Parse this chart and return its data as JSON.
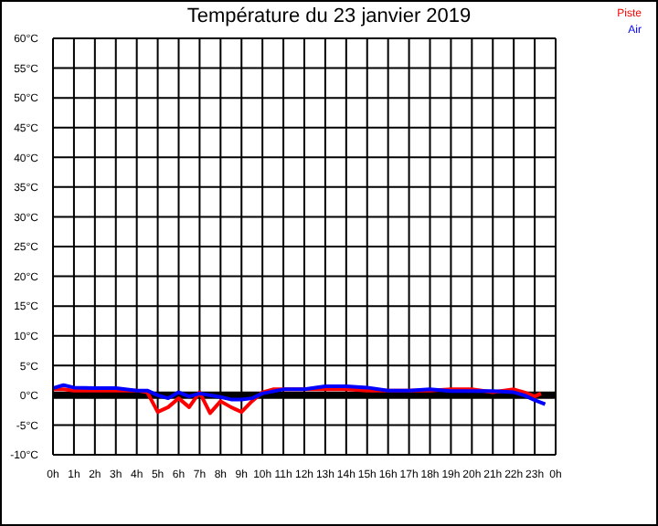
{
  "chart_data": {
    "type": "line",
    "title": "Température du 23 janvier 2019",
    "series": [
      {
        "name": "Piste",
        "color": "#ff0000",
        "x": [
          "2019-01-23T00:00",
          "2019-01-23T00:30",
          "2019-01-23T01:00",
          "2019-01-23T02:00",
          "2019-01-23T03:00",
          "2019-01-23T04:00",
          "2019-01-23T04:30",
          "2019-01-23T05:00",
          "2019-01-23T05:30",
          "2019-01-23T06:00",
          "2019-01-23T06:30",
          "2019-01-23T07:00",
          "2019-01-23T07:30",
          "2019-01-23T08:00",
          "2019-01-23T08:30",
          "2019-01-23T09:00",
          "2019-01-23T09:30",
          "2019-01-23T10:00",
          "2019-01-23T10:30",
          "2019-01-23T11:00",
          "2019-01-23T12:00",
          "2019-01-23T13:00",
          "2019-01-23T14:00",
          "2019-01-23T15:00",
          "2019-01-23T16:00",
          "2019-01-23T17:00",
          "2019-01-23T18:00",
          "2019-01-23T19:00",
          "2019-01-23T20:00",
          "2019-01-23T21:00",
          "2019-01-23T22:00",
          "2019-01-23T22:30",
          "2019-01-23T23:00",
          "2019-01-23T23:18"
        ],
        "values": [
          1,
          1,
          0.8,
          0.8,
          0.8,
          0.8,
          0.5,
          -2.8,
          -2,
          -0.5,
          -2,
          0.5,
          -3,
          -1,
          -2,
          -2.8,
          -1,
          0.5,
          1,
          1,
          1,
          1,
          1,
          0.8,
          0.8,
          0.8,
          0.8,
          1,
          1,
          0.5,
          1,
          0.5,
          -0.2,
          0.3
        ]
      },
      {
        "name": "Air",
        "color": "#0000ff",
        "x": [
          "2019-01-23T00:00",
          "2019-01-23T00:30",
          "2019-01-23T01:00",
          "2019-01-23T02:00",
          "2019-01-23T03:00",
          "2019-01-23T04:00",
          "2019-01-23T04:30",
          "2019-01-23T05:00",
          "2019-01-23T05:30",
          "2019-01-23T06:00",
          "2019-01-23T06:30",
          "2019-01-23T07:00",
          "2019-01-23T08:00",
          "2019-01-23T08:30",
          "2019-01-23T09:00",
          "2019-01-23T09:30",
          "2019-01-23T10:00",
          "2019-01-23T11:00",
          "2019-01-23T12:00",
          "2019-01-23T13:00",
          "2019-01-23T14:00",
          "2019-01-23T15:00",
          "2019-01-23T16:00",
          "2019-01-23T17:00",
          "2019-01-23T18:00",
          "2019-01-23T19:00",
          "2019-01-23T20:00",
          "2019-01-23T21:00",
          "2019-01-23T22:00",
          "2019-01-23T22:30",
          "2019-01-23T23:00",
          "2019-01-23T23:30"
        ],
        "values": [
          1.2,
          1.7,
          1.3,
          1.2,
          1.2,
          0.8,
          0.8,
          0,
          -0.5,
          0.5,
          -0.2,
          0.3,
          -0.3,
          -0.7,
          -0.7,
          -0.5,
          0.3,
          1,
          1,
          1.5,
          1.5,
          1.3,
          0.8,
          0.8,
          1,
          0.7,
          0.7,
          0.7,
          0.5,
          0,
          -0.8,
          -1.5
        ]
      }
    ],
    "xlim": [
      "2019-01-23T00:00",
      "2019-01-24T00:00"
    ],
    "xticks": [
      {
        "value": "2019-01-23T00:00",
        "label": "0h"
      },
      {
        "value": "2019-01-23T01:00",
        "label": "1h"
      },
      {
        "value": "2019-01-23T02:00",
        "label": "2h"
      },
      {
        "value": "2019-01-23T03:00",
        "label": "3h"
      },
      {
        "value": "2019-01-23T04:00",
        "label": "4h"
      },
      {
        "value": "2019-01-23T05:00",
        "label": "5h"
      },
      {
        "value": "2019-01-23T06:00",
        "label": "6h"
      },
      {
        "value": "2019-01-23T07:00",
        "label": "7h"
      },
      {
        "value": "2019-01-23T08:00",
        "label": "8h"
      },
      {
        "value": "2019-01-23T09:00",
        "label": "9h"
      },
      {
        "value": "2019-01-23T10:00",
        "label": "10h"
      },
      {
        "value": "2019-01-23T11:00",
        "label": "11h"
      },
      {
        "value": "2019-01-23T12:00",
        "label": "12h"
      },
      {
        "value": "2019-01-23T13:00",
        "label": "13h"
      },
      {
        "value": "2019-01-23T14:00",
        "label": "14h"
      },
      {
        "value": "2019-01-23T15:00",
        "label": "15h"
      },
      {
        "value": "2019-01-23T16:00",
        "label": "16h"
      },
      {
        "value": "2019-01-23T17:00",
        "label": "17h"
      },
      {
        "value": "2019-01-23T18:00",
        "label": "18h"
      },
      {
        "value": "2019-01-23T19:00",
        "label": "19h"
      },
      {
        "value": "2019-01-23T20:00",
        "label": "20h"
      },
      {
        "value": "2019-01-23T21:00",
        "label": "21h"
      },
      {
        "value": "2019-01-23T22:00",
        "label": "22h"
      },
      {
        "value": "2019-01-23T23:00",
        "label": "23h"
      },
      {
        "value": "2019-01-24T00:00",
        "label": "0h"
      }
    ],
    "ylim": [
      -10,
      60
    ],
    "yticks": [
      {
        "value": -10,
        "label": "-10°C"
      },
      {
        "value": -5,
        "label": "-5°C"
      },
      {
        "value": 0,
        "label": "0°C"
      },
      {
        "value": 5,
        "label": "5°C"
      },
      {
        "value": 10,
        "label": "10°C"
      },
      {
        "value": 15,
        "label": "15°C"
      },
      {
        "value": 20,
        "label": "20°C"
      },
      {
        "value": 25,
        "label": "25°C"
      },
      {
        "value": 30,
        "label": "30°C"
      },
      {
        "value": 35,
        "label": "35°C"
      },
      {
        "value": 40,
        "label": "40°C"
      },
      {
        "value": 45,
        "label": "45°C"
      },
      {
        "value": 50,
        "label": "50°C"
      },
      {
        "value": 55,
        "label": "55°C"
      },
      {
        "value": 60,
        "label": "60°C"
      }
    ],
    "ref_lines": [
      {
        "axis": "y",
        "value": 0,
        "color": "#000000"
      }
    ],
    "grid": true,
    "legend": "top right",
    "marker": "none",
    "line_style": "solid"
  }
}
